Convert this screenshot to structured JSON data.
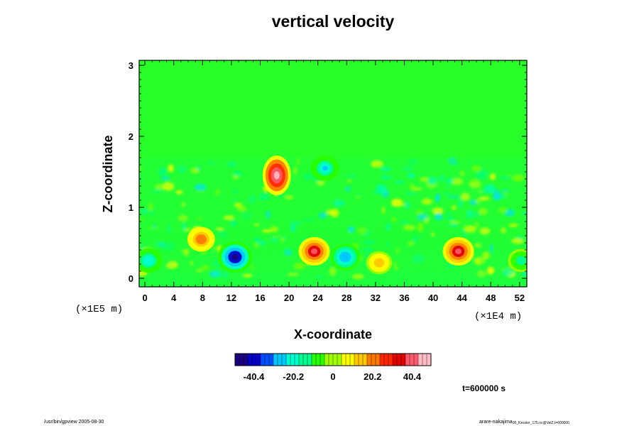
{
  "chart_data": {
    "type": "heatmap",
    "title": "vertical velocity",
    "xlabel": "X-coordinate",
    "ylabel": "Z-coordinate",
    "x_unit": "(×1E4 m)",
    "z_unit": "(×1E5 m)",
    "xlim": [
      -0.8,
      53
    ],
    "zlim": [
      -0.12,
      3.07
    ],
    "x_ticks": [
      "0",
      "4",
      "8",
      "12",
      "16",
      "20",
      "24",
      "28",
      "32",
      "36",
      "40",
      "44",
      "48",
      "52"
    ],
    "z_ticks": [
      "0",
      "1",
      "2",
      "3"
    ],
    "colorbar": {
      "range": [
        -50,
        50
      ],
      "tick_labels": [
        "-40.4",
        "-20.2",
        "0",
        "20.2",
        "40.4"
      ],
      "colors": [
        "#1b007f",
        "#0000c8",
        "#0050ff",
        "#00c8ff",
        "#00ffd0",
        "#00ff90",
        "#28ff00",
        "#a0ff00",
        "#ffff00",
        "#ffc800",
        "#ff7800",
        "#ff2800",
        "#e00000",
        "#ff5a6e",
        "#ffbcc4"
      ]
    },
    "background_color": "#22ff22",
    "features": [
      {
        "x": 12.5,
        "z": 0.3,
        "value": -50
      },
      {
        "x": 18.3,
        "z": 1.45,
        "value": 48
      },
      {
        "x": 23.5,
        "z": 0.38,
        "value": 38
      },
      {
        "x": 27.8,
        "z": 0.3,
        "value": -30
      },
      {
        "x": 43.5,
        "z": 0.38,
        "value": 38
      },
      {
        "x": 25.0,
        "z": 1.55,
        "value": -25
      },
      {
        "x": 0.5,
        "z": 0.25,
        "value": -22
      },
      {
        "x": 7.8,
        "z": 0.55,
        "value": 22
      },
      {
        "x": 32.5,
        "z": 0.22,
        "value": 15
      },
      {
        "x": 52.2,
        "z": 0.25,
        "value": -15
      }
    ],
    "time_label": "t=600000 s"
  },
  "footer": {
    "left": "/usr/bin/gpview 2005-08-30",
    "right_main": "arare-nakajima",
    "right_small": "05_Kessler_175.nc@VelZ,t=600000"
  }
}
